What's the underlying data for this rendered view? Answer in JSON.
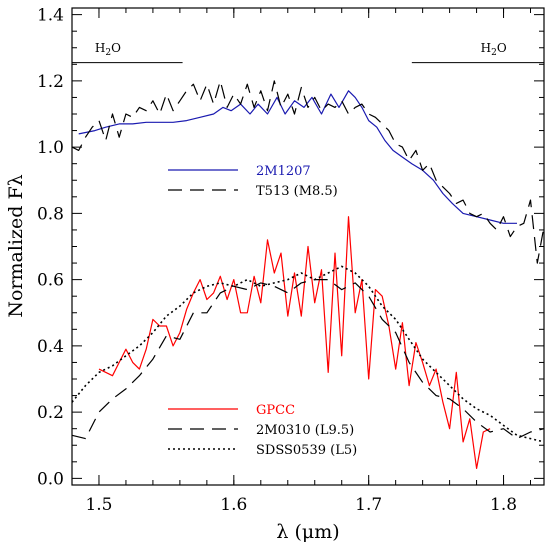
{
  "chart_data": {
    "type": "line",
    "xlabel": "λ (μm)",
    "ylabel": "Normalized Fλ",
    "xlim": [
      1.48,
      1.83
    ],
    "ylim": [
      -0.02,
      1.42
    ],
    "x_ticks": [
      "1.5",
      "1.6",
      "1.7",
      "1.8"
    ],
    "x_tick_values": [
      1.5,
      1.6,
      1.7,
      1.8
    ],
    "y_ticks": [
      "0.0",
      "0.2",
      "0.4",
      "0.6",
      "0.8",
      "1.0",
      "1.2",
      "1.4"
    ],
    "y_tick_values": [
      0.0,
      0.2,
      0.4,
      0.6,
      0.8,
      1.0,
      1.2,
      1.4
    ],
    "grid": false,
    "annotations": [
      {
        "label": "H2O",
        "x_text": 1.497,
        "y_text": 1.3,
        "x_start": 1.48,
        "x_end": 1.562,
        "y_line": 1.255
      },
      {
        "label": "H2O",
        "x_text": 1.783,
        "y_text": 1.3,
        "x_start": 1.732,
        "x_end": 1.83,
        "y_line": 1.255
      }
    ],
    "legends": [
      {
        "position": "middle-left",
        "entries": [
          {
            "series": "2M1207",
            "label": "2M1207",
            "color": "#1a1ab0",
            "style": "solid"
          },
          {
            "series": "T513",
            "label": "T513 (M8.5)",
            "color": "#000000",
            "style": "dashed"
          }
        ]
      },
      {
        "position": "lower-left",
        "entries": [
          {
            "series": "GPCC",
            "label": "GPCC",
            "color": "#ff0000",
            "style": "solid"
          },
          {
            "series": "2M0310",
            "label": "2M0310 (L9.5)",
            "color": "#000000",
            "style": "dashed"
          },
          {
            "series": "SDSS0539",
            "label": "SDSS0539 (L5)",
            "color": "#000000",
            "style": "dotted"
          }
        ]
      }
    ],
    "series": [
      {
        "name": "2M1207",
        "color": "#1a1ab0",
        "style": "solid",
        "x": [
          1.485,
          1.497,
          1.505,
          1.515,
          1.525,
          1.535,
          1.545,
          1.555,
          1.565,
          1.575,
          1.585,
          1.592,
          1.598,
          1.605,
          1.612,
          1.618,
          1.625,
          1.632,
          1.638,
          1.645,
          1.652,
          1.658,
          1.665,
          1.672,
          1.678,
          1.685,
          1.69,
          1.695,
          1.7,
          1.706,
          1.712,
          1.718,
          1.725,
          1.732,
          1.74,
          1.748,
          1.755,
          1.762,
          1.77,
          1.78,
          1.79,
          1.8,
          1.81
        ],
        "y": [
          1.04,
          1.05,
          1.06,
          1.07,
          1.07,
          1.075,
          1.075,
          1.075,
          1.08,
          1.09,
          1.1,
          1.12,
          1.11,
          1.13,
          1.1,
          1.13,
          1.1,
          1.15,
          1.1,
          1.14,
          1.12,
          1.15,
          1.1,
          1.16,
          1.12,
          1.17,
          1.15,
          1.12,
          1.08,
          1.06,
          1.02,
          0.99,
          0.97,
          0.95,
          0.93,
          0.9,
          0.86,
          0.83,
          0.8,
          0.79,
          0.78,
          0.77,
          0.77
        ]
      },
      {
        "name": "T513",
        "color": "#000000",
        "style": "dashed",
        "x": [
          1.48,
          1.485,
          1.49,
          1.495,
          1.5,
          1.505,
          1.51,
          1.515,
          1.52,
          1.525,
          1.53,
          1.535,
          1.54,
          1.545,
          1.55,
          1.555,
          1.56,
          1.565,
          1.57,
          1.575,
          1.58,
          1.585,
          1.59,
          1.595,
          1.6,
          1.605,
          1.61,
          1.615,
          1.62,
          1.625,
          1.63,
          1.635,
          1.64,
          1.645,
          1.65,
          1.655,
          1.66,
          1.665,
          1.67,
          1.675,
          1.68,
          1.685,
          1.69,
          1.695,
          1.7,
          1.705,
          1.71,
          1.715,
          1.72,
          1.725,
          1.73,
          1.735,
          1.74,
          1.745,
          1.75,
          1.755,
          1.76,
          1.765,
          1.77,
          1.775,
          1.78,
          1.785,
          1.79,
          1.795,
          1.8,
          1.805,
          1.81,
          1.815,
          1.82,
          1.825,
          1.83
        ],
        "y": [
          1.0,
          0.99,
          1.03,
          1.06,
          1.08,
          1.02,
          1.1,
          1.03,
          1.1,
          1.09,
          1.12,
          1.11,
          1.14,
          1.1,
          1.16,
          1.11,
          1.14,
          1.17,
          1.19,
          1.14,
          1.19,
          1.13,
          1.2,
          1.12,
          1.16,
          1.13,
          1.19,
          1.12,
          1.17,
          1.11,
          1.2,
          1.12,
          1.16,
          1.1,
          1.18,
          1.12,
          1.15,
          1.11,
          1.13,
          1.12,
          1.14,
          1.1,
          1.12,
          1.13,
          1.1,
          1.09,
          1.07,
          1.05,
          1.01,
          1.0,
          0.96,
          0.99,
          0.93,
          0.95,
          0.9,
          0.88,
          0.86,
          0.83,
          0.84,
          0.8,
          0.79,
          0.8,
          0.77,
          0.75,
          0.79,
          0.73,
          0.76,
          0.77,
          0.84,
          0.65,
          0.76
        ]
      },
      {
        "name": "GPCC",
        "color": "#ff0000",
        "style": "solid",
        "x": [
          1.5,
          1.51,
          1.515,
          1.52,
          1.525,
          1.53,
          1.535,
          1.54,
          1.545,
          1.55,
          1.555,
          1.56,
          1.565,
          1.57,
          1.575,
          1.58,
          1.585,
          1.59,
          1.595,
          1.6,
          1.605,
          1.61,
          1.615,
          1.62,
          1.625,
          1.63,
          1.635,
          1.64,
          1.645,
          1.65,
          1.655,
          1.66,
          1.665,
          1.67,
          1.675,
          1.68,
          1.685,
          1.69,
          1.695,
          1.7,
          1.705,
          1.71,
          1.715,
          1.72,
          1.725,
          1.73,
          1.735,
          1.74,
          1.745,
          1.75,
          1.755,
          1.76,
          1.765,
          1.77,
          1.775,
          1.78,
          1.785,
          1.79
        ],
        "y": [
          0.33,
          0.31,
          0.35,
          0.39,
          0.35,
          0.33,
          0.39,
          0.48,
          0.46,
          0.46,
          0.4,
          0.44,
          0.51,
          0.56,
          0.6,
          0.54,
          0.56,
          0.61,
          0.54,
          0.6,
          0.5,
          0.5,
          0.61,
          0.53,
          0.72,
          0.62,
          0.68,
          0.49,
          0.62,
          0.49,
          0.7,
          0.53,
          0.63,
          0.32,
          0.68,
          0.37,
          0.79,
          0.5,
          0.6,
          0.3,
          0.57,
          0.55,
          0.46,
          0.33,
          0.47,
          0.28,
          0.41,
          0.35,
          0.28,
          0.33,
          0.23,
          0.15,
          0.32,
          0.11,
          0.18,
          0.03,
          0.14,
          0.15
        ]
      },
      {
        "name": "2M0310",
        "color": "#000000",
        "style": "dashed",
        "x": [
          1.48,
          1.49,
          1.5,
          1.51,
          1.52,
          1.53,
          1.54,
          1.55,
          1.56,
          1.57,
          1.58,
          1.59,
          1.6,
          1.61,
          1.62,
          1.63,
          1.64,
          1.65,
          1.66,
          1.67,
          1.68,
          1.69,
          1.7,
          1.71,
          1.72,
          1.73,
          1.74,
          1.75,
          1.76,
          1.77,
          1.78,
          1.79,
          1.8,
          1.81,
          1.82,
          1.83
        ],
        "y": [
          0.13,
          0.12,
          0.2,
          0.24,
          0.27,
          0.31,
          0.36,
          0.43,
          0.42,
          0.5,
          0.5,
          0.56,
          0.58,
          0.57,
          0.59,
          0.58,
          0.56,
          0.59,
          0.6,
          0.6,
          0.57,
          0.59,
          0.55,
          0.48,
          0.44,
          0.35,
          0.29,
          0.25,
          0.24,
          0.21,
          0.17,
          0.14,
          0.15,
          0.12,
          0.14,
          0.15
        ]
      },
      {
        "name": "SDSS0539",
        "color": "#000000",
        "style": "dotted",
        "x": [
          1.48,
          1.49,
          1.5,
          1.51,
          1.52,
          1.53,
          1.54,
          1.55,
          1.56,
          1.57,
          1.58,
          1.59,
          1.6,
          1.61,
          1.62,
          1.63,
          1.64,
          1.65,
          1.66,
          1.67,
          1.68,
          1.69,
          1.7,
          1.71,
          1.72,
          1.73,
          1.74,
          1.75,
          1.76,
          1.77,
          1.78,
          1.79,
          1.8,
          1.81,
          1.82,
          1.83
        ],
        "y": [
          0.23,
          0.28,
          0.32,
          0.34,
          0.37,
          0.4,
          0.44,
          0.49,
          0.52,
          0.56,
          0.58,
          0.59,
          0.58,
          0.6,
          0.58,
          0.59,
          0.6,
          0.62,
          0.6,
          0.62,
          0.64,
          0.62,
          0.58,
          0.52,
          0.48,
          0.42,
          0.36,
          0.32,
          0.28,
          0.24,
          0.21,
          0.19,
          0.16,
          0.13,
          0.12,
          0.11
        ]
      }
    ]
  }
}
